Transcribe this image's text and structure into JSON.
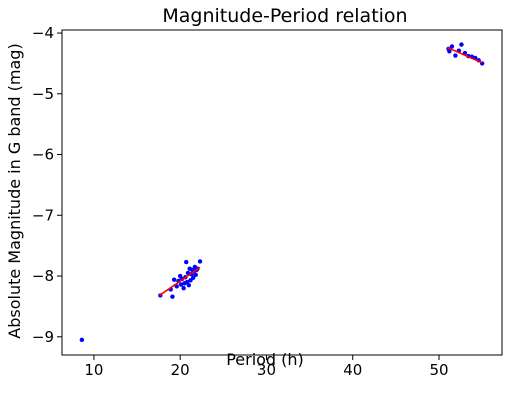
{
  "chart_data": {
    "type": "scatter",
    "title": "Magnitude-Period relation",
    "xlabel": "Period (h)",
    "ylabel": "Absolute Magnitude in G band (mag)",
    "xlim": [
      6.3,
      57.3
    ],
    "ylim": [
      -9.3,
      -3.95
    ],
    "xticks": [
      10,
      20,
      30,
      40,
      50
    ],
    "xtick_labels": [
      "10",
      "20",
      "30",
      "40",
      "50"
    ],
    "yticks": [
      -4,
      -5,
      -6,
      -7,
      -8,
      -9
    ],
    "ytick_labels": [
      "−4",
      "−5",
      "−6",
      "−7",
      "−8",
      "−9"
    ],
    "grid": false,
    "legend": null,
    "series": [
      {
        "kind": "points",
        "color": "#0000ff",
        "x": [
          8.6,
          17.7,
          18.9,
          19.1,
          19.3,
          19.6,
          19.8,
          20.0,
          20.1,
          20.2,
          20.4,
          20.5,
          20.6,
          20.7,
          20.8,
          20.9,
          21.0,
          21.1,
          21.2,
          21.3,
          21.4,
          21.5,
          21.6,
          21.7,
          21.8,
          21.9,
          22.0,
          22.3,
          51.1,
          51.2,
          51.5,
          51.9,
          52.3,
          52.6,
          53.0,
          53.4,
          53.8,
          54.2,
          54.6,
          55.0
        ],
        "y": [
          -9.05,
          -8.32,
          -8.22,
          -8.34,
          -8.06,
          -8.17,
          -8.08,
          -8.0,
          -8.14,
          -8.05,
          -8.2,
          -8.12,
          -8.02,
          -7.77,
          -8.1,
          -7.95,
          -8.15,
          -7.88,
          -8.07,
          -7.97,
          -7.9,
          -8.03,
          -7.92,
          -7.85,
          -7.98,
          -7.9,
          -7.88,
          -7.76,
          -4.26,
          -4.3,
          -4.22,
          -4.37,
          -4.29,
          -4.19,
          -4.33,
          -4.38,
          -4.39,
          -4.41,
          -4.45,
          -4.5
        ]
      },
      {
        "kind": "fit",
        "color": "#ff0000",
        "segments": [
          {
            "x": [
              17.6,
              22.3
            ],
            "y": [
              -8.32,
              -7.86
            ]
          },
          {
            "x": [
              51.0,
              55.0
            ],
            "y": [
              -4.24,
              -4.49
            ]
          }
        ]
      }
    ]
  }
}
